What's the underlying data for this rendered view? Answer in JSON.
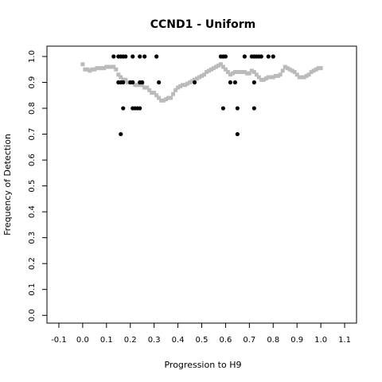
{
  "chart_data": {
    "type": "scatter",
    "title": "CCND1 - Uniform",
    "xlabel": "Progression to H9",
    "ylabel": "Frequency of Detection",
    "xlim": [
      -0.15,
      1.15
    ],
    "ylim": [
      -0.03,
      1.04
    ],
    "x_ticks": [
      "-0.1",
      "0.0",
      "0.1",
      "0.2",
      "0.3",
      "0.4",
      "0.5",
      "0.6",
      "0.7",
      "0.8",
      "0.9",
      "1.0",
      "1.1"
    ],
    "y_ticks": [
      "0.0",
      "0.1",
      "0.2",
      "0.3",
      "0.4",
      "0.5",
      "0.6",
      "0.7",
      "0.8",
      "0.9",
      "1.0"
    ],
    "grid": false,
    "series": [
      {
        "color": "#bbbbbb",
        "marker": "square",
        "points": [
          [
            0.0,
            0.97
          ],
          [
            0.01,
            0.95
          ],
          [
            0.02,
            0.95
          ],
          [
            0.03,
            0.945
          ],
          [
            0.04,
            0.95
          ],
          [
            0.05,
            0.95
          ],
          [
            0.06,
            0.955
          ],
          [
            0.07,
            0.955
          ],
          [
            0.08,
            0.955
          ],
          [
            0.09,
            0.955
          ],
          [
            0.1,
            0.96
          ],
          [
            0.11,
            0.96
          ],
          [
            0.12,
            0.96
          ],
          [
            0.13,
            0.96
          ],
          [
            0.14,
            0.95
          ],
          [
            0.15,
            0.93
          ],
          [
            0.16,
            0.92
          ],
          [
            0.17,
            0.91
          ],
          [
            0.18,
            0.91
          ],
          [
            0.19,
            0.9
          ],
          [
            0.2,
            0.9
          ],
          [
            0.21,
            0.9
          ],
          [
            0.22,
            0.89
          ],
          [
            0.23,
            0.89
          ],
          [
            0.24,
            0.89
          ],
          [
            0.25,
            0.89
          ],
          [
            0.26,
            0.88
          ],
          [
            0.27,
            0.88
          ],
          [
            0.28,
            0.87
          ],
          [
            0.29,
            0.86
          ],
          [
            0.3,
            0.86
          ],
          [
            0.31,
            0.85
          ],
          [
            0.32,
            0.84
          ],
          [
            0.33,
            0.83
          ],
          [
            0.34,
            0.83
          ],
          [
            0.35,
            0.835
          ],
          [
            0.36,
            0.84
          ],
          [
            0.37,
            0.84
          ],
          [
            0.38,
            0.855
          ],
          [
            0.39,
            0.87
          ],
          [
            0.4,
            0.88
          ],
          [
            0.41,
            0.885
          ],
          [
            0.42,
            0.89
          ],
          [
            0.43,
            0.89
          ],
          [
            0.44,
            0.895
          ],
          [
            0.45,
            0.9
          ],
          [
            0.46,
            0.905
          ],
          [
            0.47,
            0.91
          ],
          [
            0.48,
            0.915
          ],
          [
            0.49,
            0.92
          ],
          [
            0.5,
            0.925
          ],
          [
            0.51,
            0.93
          ],
          [
            0.52,
            0.94
          ],
          [
            0.53,
            0.945
          ],
          [
            0.54,
            0.95
          ],
          [
            0.55,
            0.955
          ],
          [
            0.56,
            0.96
          ],
          [
            0.57,
            0.965
          ],
          [
            0.58,
            0.97
          ],
          [
            0.59,
            0.96
          ],
          [
            0.6,
            0.95
          ],
          [
            0.61,
            0.94
          ],
          [
            0.62,
            0.93
          ],
          [
            0.63,
            0.935
          ],
          [
            0.64,
            0.94
          ],
          [
            0.65,
            0.94
          ],
          [
            0.66,
            0.94
          ],
          [
            0.67,
            0.94
          ],
          [
            0.68,
            0.94
          ],
          [
            0.69,
            0.935
          ],
          [
            0.7,
            0.935
          ],
          [
            0.71,
            0.945
          ],
          [
            0.72,
            0.94
          ],
          [
            0.73,
            0.93
          ],
          [
            0.74,
            0.92
          ],
          [
            0.75,
            0.91
          ],
          [
            0.76,
            0.91
          ],
          [
            0.77,
            0.915
          ],
          [
            0.78,
            0.92
          ],
          [
            0.79,
            0.92
          ],
          [
            0.8,
            0.92
          ],
          [
            0.81,
            0.925
          ],
          [
            0.82,
            0.925
          ],
          [
            0.83,
            0.93
          ],
          [
            0.84,
            0.945
          ],
          [
            0.85,
            0.96
          ],
          [
            0.86,
            0.955
          ],
          [
            0.87,
            0.95
          ],
          [
            0.88,
            0.945
          ],
          [
            0.89,
            0.94
          ],
          [
            0.9,
            0.93
          ],
          [
            0.91,
            0.92
          ],
          [
            0.92,
            0.92
          ],
          [
            0.93,
            0.92
          ],
          [
            0.94,
            0.925
          ],
          [
            0.95,
            0.93
          ],
          [
            0.96,
            0.94
          ],
          [
            0.97,
            0.945
          ],
          [
            0.98,
            0.95
          ],
          [
            0.99,
            0.955
          ],
          [
            1.0,
            0.955
          ]
        ]
      },
      {
        "color": "#000000",
        "marker": "circle",
        "points": [
          [
            0.13,
            1.0
          ],
          [
            0.15,
            1.0
          ],
          [
            0.16,
            1.0
          ],
          [
            0.17,
            1.0
          ],
          [
            0.18,
            1.0
          ],
          [
            0.21,
            1.0
          ],
          [
            0.24,
            1.0
          ],
          [
            0.26,
            1.0
          ],
          [
            0.31,
            1.0
          ],
          [
            0.58,
            1.0
          ],
          [
            0.59,
            1.0
          ],
          [
            0.6,
            1.0
          ],
          [
            0.68,
            1.0
          ],
          [
            0.71,
            1.0
          ],
          [
            0.72,
            1.0
          ],
          [
            0.73,
            1.0
          ],
          [
            0.74,
            1.0
          ],
          [
            0.75,
            1.0
          ],
          [
            0.78,
            1.0
          ],
          [
            0.8,
            1.0
          ],
          [
            0.15,
            0.9
          ],
          [
            0.16,
            0.9
          ],
          [
            0.17,
            0.9
          ],
          [
            0.2,
            0.9
          ],
          [
            0.21,
            0.9
          ],
          [
            0.24,
            0.9
          ],
          [
            0.25,
            0.9
          ],
          [
            0.32,
            0.9
          ],
          [
            0.47,
            0.9
          ],
          [
            0.62,
            0.9
          ],
          [
            0.64,
            0.9
          ],
          [
            0.72,
            0.9
          ],
          [
            0.17,
            0.8
          ],
          [
            0.21,
            0.8
          ],
          [
            0.22,
            0.8
          ],
          [
            0.23,
            0.8
          ],
          [
            0.24,
            0.8
          ],
          [
            0.59,
            0.8
          ],
          [
            0.65,
            0.8
          ],
          [
            0.72,
            0.8
          ],
          [
            0.16,
            0.7
          ],
          [
            0.65,
            0.7
          ]
        ]
      }
    ]
  }
}
